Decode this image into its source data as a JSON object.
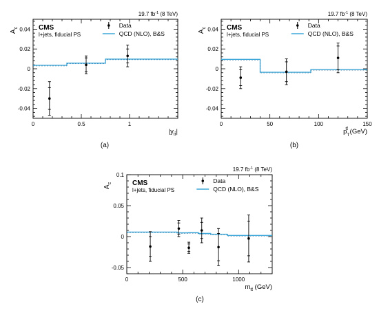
{
  "colors": {
    "qcd": "#3fa8d8",
    "data": "#000000",
    "axis": "#000000"
  },
  "chart_data": [
    {
      "panel": "(a)",
      "type": "errorbar-with-step",
      "header": "19.7 fb",
      "header_sup": "-1",
      "header_tail": " (8 TeV)",
      "brand": "CMS",
      "subbrand": "l+jets, fiducial PS",
      "ylabel": "A",
      "ylabel_sub": "c",
      "xlabel": "|y",
      "xlabel_sub": "tt̄",
      "xlabel_tail": "|",
      "xlim": [
        0,
        1.5
      ],
      "ylim": [
        -0.05,
        0.05
      ],
      "xticks": [
        "0",
        "0.5",
        "1"
      ],
      "xtick_values": [
        0,
        0.5,
        1.0
      ],
      "yticks": [
        "-0.04",
        "-0.02",
        "0",
        "0.02",
        "0.04"
      ],
      "ytick_values": [
        -0.04,
        -0.02,
        0,
        0.02,
        0.04
      ],
      "legend": {
        "data": "Data",
        "qcd": "QCD (NLO), B&S",
        "position": "top-right"
      },
      "data_points": [
        {
          "x": 0.17,
          "y": -0.03,
          "err_inner": 0.011,
          "err_outer": 0.017
        },
        {
          "x": 0.55,
          "y": 0.004,
          "err_inner": 0.007,
          "err_outer": 0.009
        },
        {
          "x": 0.98,
          "y": 0.013,
          "err_inner": 0.007,
          "err_outer": 0.011
        }
      ],
      "qcd_steps": [
        {
          "x0": 0.0,
          "x1": 0.35,
          "y": 0.0035
        },
        {
          "x0": 0.35,
          "x1": 0.75,
          "y": 0.0057
        },
        {
          "x0": 0.75,
          "x1": 1.5,
          "y": 0.0098
        }
      ]
    },
    {
      "panel": "(b)",
      "type": "errorbar-with-step",
      "header": "19.7 fb",
      "header_sup": "-1",
      "header_tail": " (8 TeV)",
      "brand": "CMS",
      "subbrand": "l+jets, fiducial PS",
      "ylabel": "A",
      "ylabel_sub": "c",
      "xlabel": "p",
      "xlabel_sup": "tt̄",
      "xlabel_sub": "T",
      "xlabel_tail": " (GeV)",
      "xlim": [
        0,
        150
      ],
      "ylim": [
        -0.05,
        0.05
      ],
      "xticks": [
        "0",
        "50",
        "100",
        "150"
      ],
      "xtick_values": [
        0,
        50,
        100,
        150
      ],
      "yticks": [
        "-0.04",
        "-0.02",
        "0",
        "0.02",
        "0.04"
      ],
      "ytick_values": [
        -0.04,
        -0.02,
        0,
        0.02,
        0.04
      ],
      "legend": {
        "data": "Data",
        "qcd": "QCD (NLO), B&S",
        "position": "top-right"
      },
      "data_points": [
        {
          "x": 20,
          "y": -0.009,
          "err_inner": 0.008,
          "err_outer": 0.011
        },
        {
          "x": 67,
          "y": -0.003,
          "err_inner": 0.01,
          "err_outer": 0.013
        },
        {
          "x": 120,
          "y": 0.011,
          "err_inner": 0.012,
          "err_outer": 0.015
        }
      ],
      "qcd_steps": [
        {
          "x0": 0,
          "x1": 40,
          "y": 0.0095
        },
        {
          "x0": 40,
          "x1": 92,
          "y": -0.0035
        },
        {
          "x0": 92,
          "x1": 150,
          "y": -0.0008
        }
      ]
    },
    {
      "panel": "(c)",
      "type": "errorbar-with-step",
      "header": "19.7 fb",
      "header_sup": "-1",
      "header_tail": " (8 TeV)",
      "brand": "CMS",
      "subbrand": "l+jets, fiducial PS",
      "ylabel": "A",
      "ylabel_sub": "c",
      "xlabel": "m",
      "xlabel_sub": "tt̄",
      "xlabel_tail": " (GeV)",
      "xlim": [
        0,
        1300
      ],
      "ylim": [
        -0.06,
        0.1
      ],
      "xticks": [
        "0",
        "500",
        "1000"
      ],
      "xtick_values": [
        0,
        500,
        1000
      ],
      "yticks": [
        "-0.05",
        "0",
        "0.05",
        "0.1"
      ],
      "ytick_values": [
        -0.05,
        0,
        0.05,
        0.1
      ],
      "legend": {
        "data": "Data",
        "qcd": "QCD (NLO), B&S",
        "position": "top-right"
      },
      "data_points": [
        {
          "x": 210,
          "y": -0.016,
          "err_inner": 0.016,
          "err_outer": 0.024
        },
        {
          "x": 465,
          "y": 0.013,
          "err_inner": 0.009,
          "err_outer": 0.013
        },
        {
          "x": 555,
          "y": -0.018,
          "err_inner": 0.006,
          "err_outer": 0.009
        },
        {
          "x": 670,
          "y": 0.01,
          "err_inner": 0.013,
          "err_outer": 0.02
        },
        {
          "x": 820,
          "y": -0.017,
          "err_inner": 0.022,
          "err_outer": 0.03
        },
        {
          "x": 1090,
          "y": -0.003,
          "err_inner": 0.028,
          "err_outer": 0.038
        }
      ],
      "qcd_steps": [
        {
          "x0": 0,
          "x1": 450,
          "y": 0.0073
        },
        {
          "x0": 450,
          "x1": 550,
          "y": 0.0061
        },
        {
          "x0": 550,
          "x1": 640,
          "y": 0.0064
        },
        {
          "x0": 640,
          "x1": 750,
          "y": 0.005
        },
        {
          "x0": 750,
          "x1": 900,
          "y": 0.0038
        },
        {
          "x0": 900,
          "x1": 1300,
          "y": 0.0019
        }
      ]
    }
  ]
}
